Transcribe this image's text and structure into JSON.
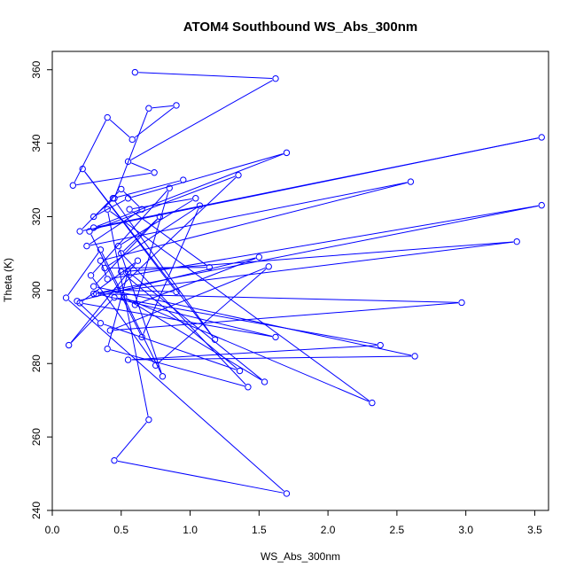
{
  "chart_data": {
    "type": "line",
    "title": "ATOM4 Southbound WS_Abs_300nm",
    "xlabel": "WS_Abs_300nm",
    "ylabel": "Theta (K)",
    "xlim": [
      0,
      3.6
    ],
    "ylim": [
      240,
      365
    ],
    "xticks": [
      "0.0",
      "0.5",
      "1.0",
      "1.5",
      "2.0",
      "2.5",
      "3.0",
      "3.5"
    ],
    "xtick_values": [
      0,
      0.5,
      1.0,
      1.5,
      2.0,
      2.5,
      3.0,
      3.5
    ],
    "yticks": [
      "240",
      "260",
      "280",
      "300",
      "320",
      "340",
      "360"
    ],
    "ytick_values": [
      240,
      260,
      280,
      300,
      320,
      340,
      360
    ],
    "grid": false,
    "marker": "open-circle",
    "series": [
      {
        "color": "#0000ff",
        "x": [
          0.6,
          1.62,
          0.55,
          0.74,
          0.15,
          0.4,
          0.58,
          0.9,
          0.7,
          0.45,
          0.3,
          0.55,
          1.7,
          0.3,
          3.55,
          0.2,
          0.5,
          0.65,
          0.25,
          2.6,
          0.35,
          0.4,
          3.55,
          0.3,
          3.37,
          0.5,
          1.36,
          0.35,
          0.18,
          1.5,
          0.6,
          0.85,
          0.28,
          0.75,
          1.57,
          0.42,
          2.97,
          0.32,
          1.62,
          0.2,
          0.62,
          0.12,
          0.45,
          2.38,
          0.55,
          2.63,
          0.3,
          0.78,
          0.5,
          1.42,
          0.4,
          0.55,
          1.54,
          0.52,
          2.32,
          0.4,
          0.7,
          0.45,
          1.7,
          0.1,
          0.35,
          0.8,
          0.48,
          1.04,
          0.56,
          1.14,
          0.38,
          1.07,
          0.65,
          0.27,
          1.35,
          0.47,
          0.9,
          0.22,
          1.18,
          0.44,
          0.95
        ],
        "y": [
          359.3,
          357.6,
          335.0,
          332.0,
          328.5,
          347.0,
          341.0,
          350.3,
          349.5,
          325.0,
          320.0,
          325.0,
          337.4,
          317.0,
          341.6,
          316.0,
          327.5,
          322.0,
          312.0,
          329.5,
          308.0,
          303.0,
          323.1,
          299.0,
          313.2,
          305.0,
          278.0,
          291.0,
          297.0,
          309.0,
          296.0,
          327.8,
          304.0,
          279.5,
          306.4,
          289.0,
          296.6,
          299.0,
          287.2,
          296.5,
          308.0,
          285.0,
          298.0,
          285.0,
          281.0,
          282.0,
          301.0,
          320.0,
          310.0,
          273.6,
          284.0,
          305.0,
          275.0,
          298.0,
          269.3,
          322.0,
          264.7,
          253.6,
          244.6,
          297.9,
          311.0,
          276.5,
          312.0,
          325.0,
          322.0,
          306.2,
          306.0,
          323.0,
          287.2,
          316.0,
          331.3,
          300.0,
          299.5,
          333.0,
          286.5,
          325.0,
          330.0
        ]
      }
    ]
  }
}
